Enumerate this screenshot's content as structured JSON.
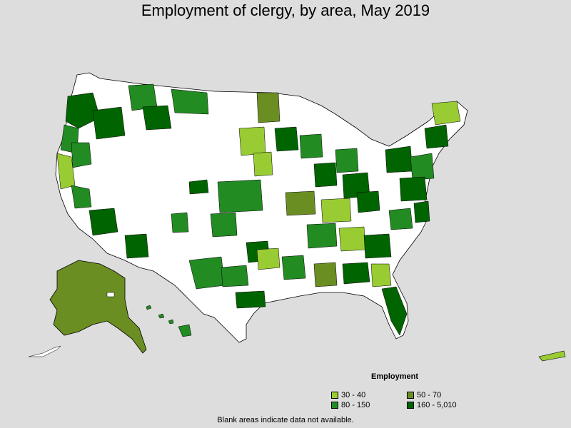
{
  "title": "Employment of clergy, by area, May 2019",
  "legend": {
    "title": "Employment",
    "items": [
      {
        "label": "30 - 40",
        "color": "#99cc33"
      },
      {
        "label": "50 - 70",
        "color": "#6b8e23"
      },
      {
        "label": "80 - 150",
        "color": "#228b22"
      },
      {
        "label": "160 - 5,010",
        "color": "#006400"
      }
    ]
  },
  "footnote": "Blank areas indicate data not available.",
  "colors": {
    "background": "#dddddd",
    "no_data": "#ffffff",
    "border": "#000000"
  }
}
